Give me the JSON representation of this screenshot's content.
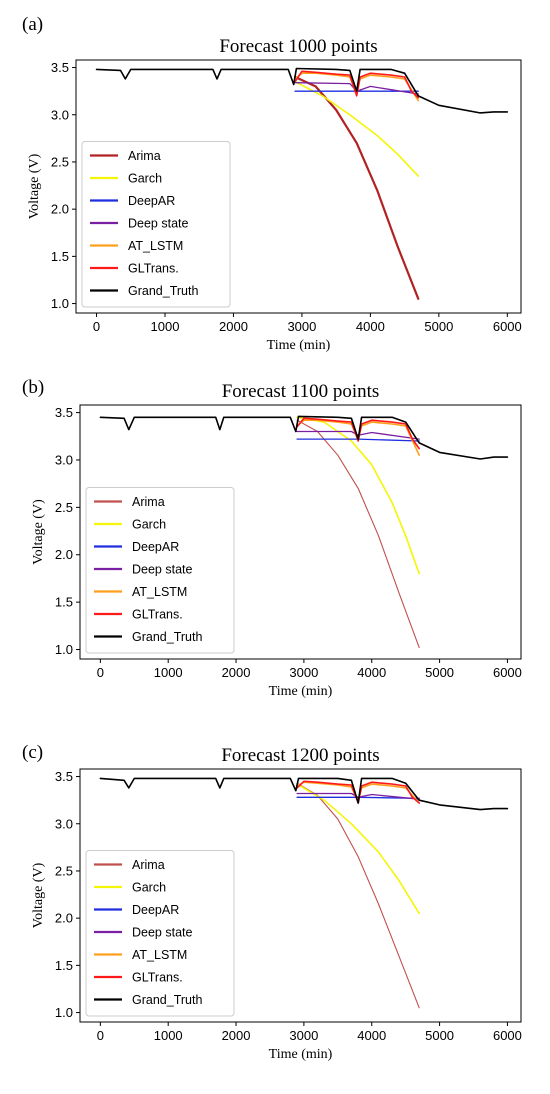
{
  "chart_data": [
    {
      "type": "line",
      "panel_label": "(a)",
      "title": "Forecast 1000 points",
      "xlabel": "Time (min)",
      "ylabel": "Voltage (V)",
      "xlim": [
        -300,
        6200
      ],
      "ylim": [
        0.9,
        3.58
      ],
      "xticks": [
        0,
        1000,
        2000,
        3000,
        4000,
        5000,
        6000
      ],
      "yticks": [
        1.0,
        1.5,
        2.0,
        2.5,
        3.0,
        3.5
      ],
      "legend_loc": "lower left",
      "forecast_start": 2900,
      "forecast_end": 4700,
      "series": [
        {
          "name": "Arima",
          "color": "#b22222",
          "width": 2.2,
          "x": [
            2900,
            3200,
            3500,
            3800,
            4100,
            4400,
            4700
          ],
          "y": [
            3.4,
            3.3,
            3.05,
            2.7,
            2.2,
            1.6,
            1.05
          ]
        },
        {
          "name": "Garch",
          "color": "#f5f50a",
          "width": 1.6,
          "x": [
            2900,
            3300,
            3700,
            4100,
            4400,
            4700
          ],
          "y": [
            3.35,
            3.2,
            3.0,
            2.78,
            2.58,
            2.35
          ]
        },
        {
          "name": "DeepAR",
          "color": "#1f2fe0",
          "width": 1.3,
          "x": [
            2900,
            3700,
            3800,
            4700
          ],
          "y": [
            3.25,
            3.25,
            3.25,
            3.25
          ]
        },
        {
          "name": "Deep state",
          "color": "#7b1fa2",
          "width": 1.3,
          "x": [
            2900,
            3700,
            3800,
            4000,
            4700
          ],
          "y": [
            3.34,
            3.33,
            3.25,
            3.3,
            3.22
          ]
        },
        {
          "name": "AT_LSTM",
          "color": "#ff9f1c",
          "width": 1.6,
          "x": [
            2900,
            3000,
            3200,
            3500,
            3700,
            3800,
            3850,
            4000,
            4300,
            4500,
            4700
          ],
          "y": [
            3.38,
            3.44,
            3.44,
            3.42,
            3.4,
            3.22,
            3.38,
            3.42,
            3.4,
            3.38,
            3.15
          ]
        },
        {
          "name": "GLTrans.",
          "color": "#ff1a1a",
          "width": 1.6,
          "x": [
            2900,
            3000,
            3200,
            3500,
            3700,
            3800,
            3850,
            4000,
            4300,
            4500,
            4600,
            4700
          ],
          "y": [
            3.35,
            3.46,
            3.45,
            3.43,
            3.42,
            3.2,
            3.4,
            3.44,
            3.42,
            3.4,
            3.25,
            3.18
          ]
        },
        {
          "name": "Grand_Truth",
          "color": "#000000",
          "width": 1.6,
          "x": [
            0,
            350,
            420,
            500,
            1700,
            1760,
            1820,
            2800,
            2880,
            2920,
            3500,
            3700,
            3800,
            3850,
            4300,
            4500,
            4700,
            5000,
            5600,
            5800,
            6000
          ],
          "y": [
            3.48,
            3.47,
            3.38,
            3.48,
            3.48,
            3.38,
            3.48,
            3.48,
            3.32,
            3.49,
            3.48,
            3.47,
            3.25,
            3.48,
            3.48,
            3.44,
            3.2,
            3.1,
            3.02,
            3.03,
            3.03
          ]
        }
      ]
    },
    {
      "type": "line",
      "panel_label": "(b)",
      "title": "Forecast 1100 points",
      "xlabel": "Time (min)",
      "ylabel": "Voltage (V)",
      "xlim": [
        -300,
        6200
      ],
      "ylim": [
        0.9,
        3.58
      ],
      "xticks": [
        0,
        1000,
        2000,
        3000,
        4000,
        5000,
        6000
      ],
      "yticks": [
        1.0,
        1.5,
        2.0,
        2.5,
        3.0,
        3.5
      ],
      "legend_loc": "lower left",
      "forecast_start": 2900,
      "forecast_end": 4700,
      "series": [
        {
          "name": "Arima",
          "color": "#c0504d",
          "width": 1.1,
          "x": [
            2900,
            3200,
            3500,
            3800,
            4100,
            4400,
            4700
          ],
          "y": [
            3.42,
            3.3,
            3.05,
            2.7,
            2.2,
            1.6,
            1.02
          ]
        },
        {
          "name": "Garch",
          "color": "#f5f50a",
          "width": 1.6,
          "x": [
            2900,
            3300,
            3700,
            4000,
            4300,
            4500,
            4700
          ],
          "y": [
            3.45,
            3.4,
            3.2,
            2.95,
            2.55,
            2.2,
            1.8
          ]
        },
        {
          "name": "DeepAR",
          "color": "#1f2fe0",
          "width": 1.3,
          "x": [
            2900,
            3700,
            3800,
            4700
          ],
          "y": [
            3.22,
            3.22,
            3.22,
            3.2
          ]
        },
        {
          "name": "Deep state",
          "color": "#7b1fa2",
          "width": 1.3,
          "x": [
            2900,
            3700,
            3800,
            4000,
            4700
          ],
          "y": [
            3.3,
            3.3,
            3.26,
            3.29,
            3.22
          ]
        },
        {
          "name": "AT_LSTM",
          "color": "#ff9f1c",
          "width": 1.6,
          "x": [
            2900,
            3000,
            3200,
            3500,
            3700,
            3800,
            3850,
            4000,
            4300,
            4500,
            4700
          ],
          "y": [
            3.36,
            3.42,
            3.42,
            3.4,
            3.38,
            3.22,
            3.36,
            3.4,
            3.38,
            3.36,
            3.05
          ]
        },
        {
          "name": "GLTrans.",
          "color": "#ff1a1a",
          "width": 1.6,
          "x": [
            2900,
            3000,
            3200,
            3500,
            3700,
            3800,
            3850,
            4000,
            4300,
            4500,
            4600,
            4700
          ],
          "y": [
            3.35,
            3.44,
            3.43,
            3.41,
            3.4,
            3.2,
            3.38,
            3.42,
            3.4,
            3.38,
            3.22,
            3.12
          ]
        },
        {
          "name": "Grand_Truth",
          "color": "#000000",
          "width": 1.6,
          "x": [
            0,
            350,
            420,
            500,
            1700,
            1760,
            1820,
            2800,
            2880,
            2920,
            3500,
            3700,
            3800,
            3850,
            4300,
            4500,
            4700,
            5000,
            5600,
            5800,
            6000
          ],
          "y": [
            3.45,
            3.44,
            3.32,
            3.45,
            3.45,
            3.32,
            3.45,
            3.45,
            3.3,
            3.46,
            3.45,
            3.44,
            3.22,
            3.45,
            3.45,
            3.4,
            3.18,
            3.08,
            3.01,
            3.03,
            3.03
          ]
        }
      ]
    },
    {
      "type": "line",
      "panel_label": "(c)",
      "title": "Forecast 1200 points",
      "xlabel": "Time (min)",
      "ylabel": "Voltage (V)",
      "xlim": [
        -300,
        6200
      ],
      "ylim": [
        0.9,
        3.58
      ],
      "xticks": [
        0,
        1000,
        2000,
        3000,
        4000,
        5000,
        6000
      ],
      "yticks": [
        1.0,
        1.5,
        2.0,
        2.5,
        3.0,
        3.5
      ],
      "legend_loc": "lower left",
      "forecast_start": 2900,
      "forecast_end": 4700,
      "series": [
        {
          "name": "Arima",
          "color": "#c0504d",
          "width": 1.1,
          "x": [
            2900,
            3200,
            3500,
            3800,
            4100,
            4400,
            4700
          ],
          "y": [
            3.43,
            3.3,
            3.05,
            2.65,
            2.15,
            1.6,
            1.05
          ]
        },
        {
          "name": "Garch",
          "color": "#f5f50a",
          "width": 1.6,
          "x": [
            2900,
            3300,
            3700,
            4100,
            4400,
            4700
          ],
          "y": [
            3.42,
            3.25,
            3.0,
            2.7,
            2.4,
            2.05
          ]
        },
        {
          "name": "DeepAR",
          "color": "#1f2fe0",
          "width": 1.3,
          "x": [
            2900,
            3700,
            3800,
            4700
          ],
          "y": [
            3.28,
            3.28,
            3.28,
            3.27
          ]
        },
        {
          "name": "Deep state",
          "color": "#7b1fa2",
          "width": 1.3,
          "x": [
            2900,
            3700,
            3800,
            4000,
            4700
          ],
          "y": [
            3.32,
            3.32,
            3.28,
            3.31,
            3.26
          ]
        },
        {
          "name": "AT_LSTM",
          "color": "#ff9f1c",
          "width": 1.6,
          "x": [
            2900,
            3000,
            3200,
            3500,
            3700,
            3800,
            3850,
            4000,
            4300,
            4500,
            4700
          ],
          "y": [
            3.4,
            3.44,
            3.43,
            3.41,
            3.39,
            3.24,
            3.38,
            3.42,
            3.4,
            3.38,
            3.22
          ]
        },
        {
          "name": "GLTrans.",
          "color": "#ff1a1a",
          "width": 1.6,
          "x": [
            2900,
            3000,
            3200,
            3500,
            3700,
            3800,
            3850,
            4000,
            4300,
            4500,
            4600,
            4700
          ],
          "y": [
            3.38,
            3.45,
            3.44,
            3.42,
            3.41,
            3.22,
            3.4,
            3.44,
            3.42,
            3.4,
            3.28,
            3.22
          ]
        },
        {
          "name": "Grand_Truth",
          "color": "#000000",
          "width": 1.6,
          "x": [
            0,
            350,
            420,
            500,
            1700,
            1760,
            1820,
            2800,
            2880,
            2920,
            3500,
            3700,
            3800,
            3850,
            4300,
            4500,
            4700,
            5000,
            5600,
            5800,
            6000
          ],
          "y": [
            3.48,
            3.46,
            3.38,
            3.48,
            3.48,
            3.38,
            3.48,
            3.48,
            3.35,
            3.48,
            3.48,
            3.46,
            3.22,
            3.48,
            3.48,
            3.43,
            3.25,
            3.2,
            3.15,
            3.16,
            3.16
          ]
        }
      ]
    }
  ]
}
